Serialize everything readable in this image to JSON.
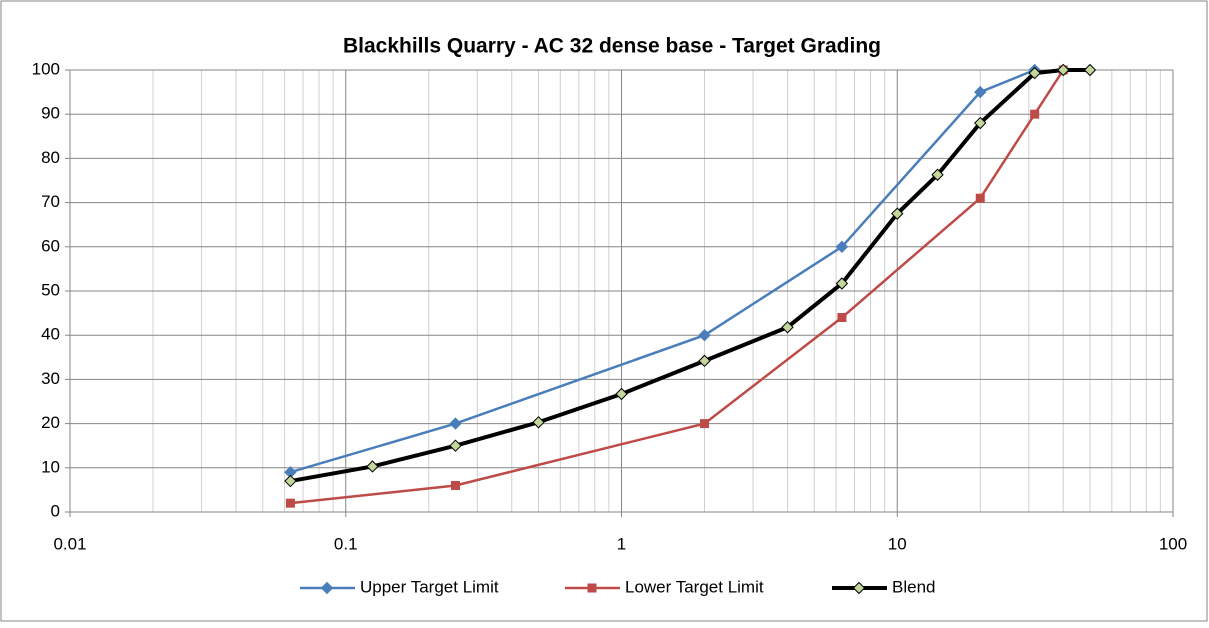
{
  "chart_data": {
    "type": "line",
    "title": "Blackhills Quarry - AC 32 dense base - Target Grading",
    "xlog": true,
    "grid": true,
    "minor_grid": true,
    "legend": "bottom",
    "xlim": [
      0.01,
      100
    ],
    "xticks": [
      0.01,
      0.1,
      1,
      10,
      100
    ],
    "ylim": [
      0,
      100
    ],
    "yticks": [
      0,
      10,
      20,
      30,
      40,
      50,
      60,
      70,
      80,
      90,
      100
    ],
    "series": [
      {
        "name": "Upper Target Limit",
        "color": "#4a7ebb",
        "marker": "diamond",
        "x": [
          0.063,
          0.25,
          2,
          6.3,
          20,
          31.5
        ],
        "values": [
          9,
          20,
          40,
          60,
          95,
          100
        ]
      },
      {
        "name": "Lower Target Limit",
        "color": "#be4b48",
        "marker": "square",
        "x": [
          0.063,
          0.25,
          2,
          6.3,
          20,
          31.5,
          40
        ],
        "values": [
          2,
          6,
          20,
          44,
          71,
          90,
          100
        ]
      },
      {
        "name": "Blend",
        "color": "#000000",
        "marker": "diamond",
        "marker_fill": "#c3d69b",
        "x": [
          0.063,
          0.125,
          0.25,
          0.5,
          1,
          2,
          4,
          6.3,
          10,
          14,
          20,
          31.5,
          40,
          50
        ],
        "values": [
          7,
          10.3,
          15,
          20.3,
          26.7,
          34.2,
          41.8,
          51.7,
          67.5,
          76.3,
          88,
          99.3,
          100,
          100
        ]
      }
    ]
  }
}
